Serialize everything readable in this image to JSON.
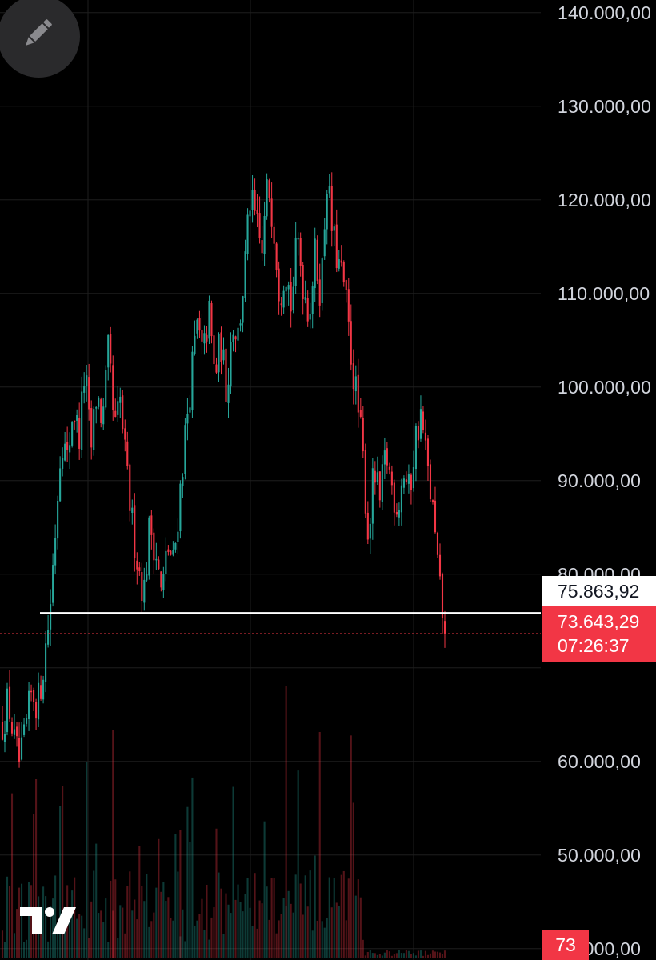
{
  "chart_data": {
    "type": "candlestick",
    "y_axis": {
      "ticks": [
        "140.000,00",
        "130.000,00",
        "120.000,00",
        "110.000,00",
        "100.000,00",
        "90.000,00",
        "80.000,00",
        "60.000,00",
        "50.000,00",
        "40.000,00"
      ],
      "tick_values": [
        140000,
        130000,
        120000,
        110000,
        100000,
        90000,
        80000,
        60000,
        50000,
        40000
      ],
      "range": [
        38500,
        141000
      ]
    },
    "level_line": {
      "value": 75863.92,
      "label": "75.863,92",
      "color": "#ffffff"
    },
    "last_price": {
      "value": 73643.29,
      "label": "73.643,29",
      "countdown": "07:26:37",
      "color": "#f23645"
    },
    "volume_indicator": {
      "label": "73",
      "color": "#f23645"
    },
    "colors": {
      "up": "#26a69a",
      "down": "#f23645",
      "background": "#000000",
      "grid": "#1e1e1e",
      "axis_text": "#d1d4dc"
    },
    "price_path": [
      64000,
      66500,
      62000,
      59500,
      63500,
      67500,
      66000,
      70500,
      75800,
      85000,
      95000,
      92000,
      98000,
      94500,
      102000,
      93000,
      99500,
      96000,
      104000,
      95000,
      98500,
      91000,
      85500,
      81000,
      78000,
      85500,
      82500,
      77500,
      83000,
      81000,
      88000,
      95000,
      101000,
      106500,
      103000,
      108000,
      101000,
      105000,
      99500,
      107000,
      105500,
      112000,
      120000,
      117500,
      114000,
      122000,
      117500,
      110000,
      113000,
      108500,
      116000,
      111000,
      108000,
      114000,
      110000,
      122500,
      116000,
      113000,
      110500,
      104000,
      99000,
      93500,
      84000,
      91000,
      87500,
      93000,
      89500,
      87000,
      91000,
      88500,
      94500,
      97000,
      91500,
      86500,
      79000,
      73643
    ]
  },
  "toolbar": {
    "draw_icon": "pencil-icon"
  },
  "branding": {
    "logo": "tradingview-logo"
  }
}
